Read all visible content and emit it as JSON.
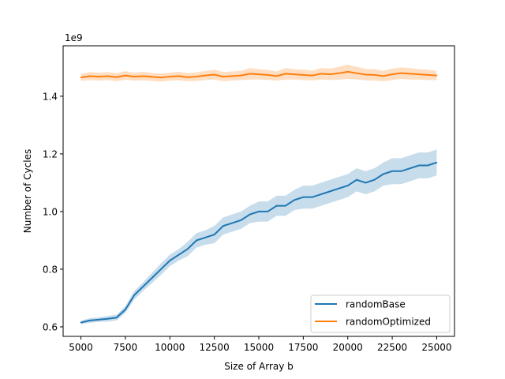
{
  "chart_data": {
    "type": "line",
    "title": "",
    "xlabel": "Size of Array b",
    "ylabel": "Number of Cycles",
    "y_offset_label": "1e9",
    "xlim": [
      4000,
      26000
    ],
    "ylim": [
      0.567,
      1.575
    ],
    "xticks": [
      5000,
      7500,
      10000,
      12500,
      15000,
      17500,
      20000,
      22500,
      25000
    ],
    "xtick_labels": [
      "5000",
      "7500",
      "10000",
      "12500",
      "15000",
      "17500",
      "20000",
      "22500",
      "25000"
    ],
    "yticks": [
      0.6,
      0.8,
      1.0,
      1.2,
      1.4
    ],
    "ytick_labels": [
      "0.6",
      "0.8",
      "1.0",
      "1.2",
      "1.4"
    ],
    "grid": false,
    "legend_placement": "lower-right",
    "x": [
      5000,
      5500,
      6000,
      6500,
      7000,
      7500,
      8000,
      8500,
      9000,
      9500,
      10000,
      10500,
      11000,
      11500,
      12000,
      12500,
      13000,
      13500,
      14000,
      14500,
      15000,
      15500,
      16000,
      16500,
      17000,
      17500,
      18000,
      18500,
      19000,
      19500,
      20000,
      20500,
      21000,
      21500,
      22000,
      22500,
      23000,
      23500,
      24000,
      24500,
      25000
    ],
    "series": [
      {
        "name": "randomBase",
        "color": "#1f77b4",
        "values": [
          0.615,
          0.622,
          0.625,
          0.628,
          0.632,
          0.66,
          0.71,
          0.74,
          0.77,
          0.8,
          0.83,
          0.85,
          0.87,
          0.9,
          0.91,
          0.92,
          0.95,
          0.96,
          0.97,
          0.99,
          1.0,
          1.0,
          1.02,
          1.02,
          1.04,
          1.05,
          1.05,
          1.06,
          1.07,
          1.08,
          1.09,
          1.11,
          1.1,
          1.11,
          1.13,
          1.14,
          1.14,
          1.15,
          1.16,
          1.16,
          1.17
        ],
        "ci_halfwidth": [
          0.006,
          0.008,
          0.008,
          0.01,
          0.01,
          0.012,
          0.015,
          0.015,
          0.018,
          0.02,
          0.02,
          0.02,
          0.025,
          0.025,
          0.025,
          0.03,
          0.03,
          0.03,
          0.03,
          0.03,
          0.035,
          0.035,
          0.035,
          0.035,
          0.035,
          0.04,
          0.04,
          0.04,
          0.04,
          0.04,
          0.04,
          0.04,
          0.04,
          0.04,
          0.04,
          0.045,
          0.045,
          0.045,
          0.045,
          0.045,
          0.045
        ]
      },
      {
        "name": "randomOptimized",
        "color": "#ff7f0e",
        "values": [
          1.465,
          1.47,
          1.468,
          1.47,
          1.466,
          1.472,
          1.468,
          1.47,
          1.467,
          1.465,
          1.468,
          1.47,
          1.466,
          1.468,
          1.472,
          1.475,
          1.468,
          1.47,
          1.472,
          1.478,
          1.476,
          1.474,
          1.47,
          1.478,
          1.476,
          1.474,
          1.472,
          1.478,
          1.476,
          1.48,
          1.485,
          1.48,
          1.475,
          1.474,
          1.47,
          1.476,
          1.48,
          1.478,
          1.476,
          1.474,
          1.472
        ],
        "ci_halfwidth": [
          0.012,
          0.014,
          0.014,
          0.014,
          0.014,
          0.015,
          0.014,
          0.015,
          0.014,
          0.014,
          0.014,
          0.015,
          0.014,
          0.015,
          0.016,
          0.017,
          0.016,
          0.016,
          0.016,
          0.02,
          0.018,
          0.017,
          0.016,
          0.02,
          0.018,
          0.018,
          0.017,
          0.02,
          0.02,
          0.022,
          0.025,
          0.022,
          0.02,
          0.02,
          0.018,
          0.02,
          0.02,
          0.02,
          0.018,
          0.018,
          0.016
        ]
      }
    ]
  }
}
